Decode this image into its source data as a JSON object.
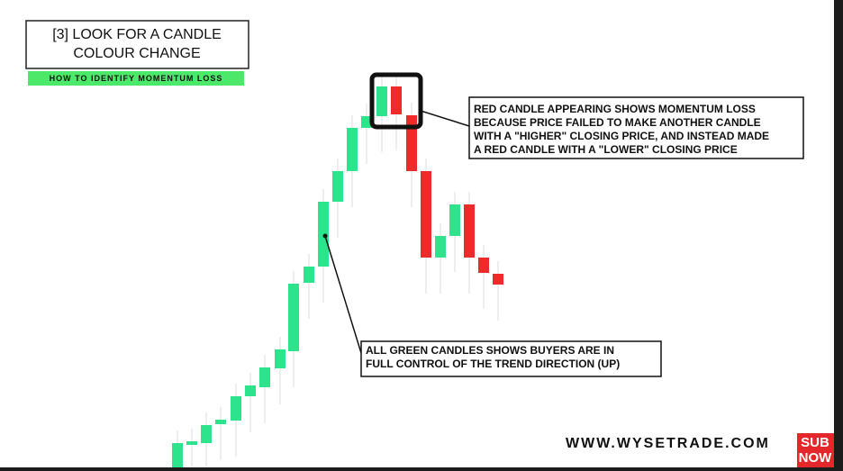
{
  "header": {
    "title_lines": [
      "[3] LOOK FOR A CANDLE",
      "COLOUR CHANGE"
    ],
    "subtitle": "HOW TO IDENTIFY MOMENTUM LOSS"
  },
  "callouts": [
    {
      "lines": [
        "RED CANDLE APPEARING SHOWS MOMENTUM LOSS",
        "BECAUSE PRICE FAILED TO MAKE ANOTHER CANDLE",
        "WITH A \"HIGHER\" CLOSING PRICE, AND INSTEAD MADE",
        "A RED CANDLE WITH A \"LOWER\" CLOSING PRICE"
      ]
    },
    {
      "lines": [
        "ALL GREEN CANDLES SHOWS BUYERS ARE IN",
        "FULL CONTROL OF THE TREND DIRECTION (UP)"
      ]
    }
  ],
  "footer": {
    "website": "WWW.WYSETRADE.COM",
    "badge_lines": [
      "SUB",
      "NOW"
    ]
  }
}
